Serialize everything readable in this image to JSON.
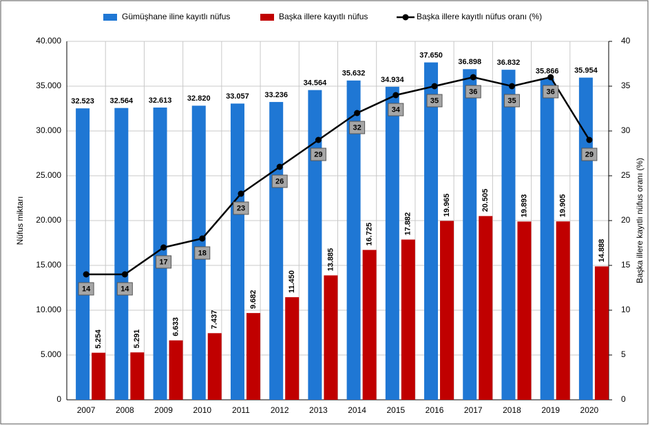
{
  "chart_data": {
    "type": "bar",
    "categories": [
      "2007",
      "2008",
      "2009",
      "2010",
      "2011",
      "2012",
      "2013",
      "2014",
      "2015",
      "2016",
      "2017",
      "2018",
      "2019",
      "2020"
    ],
    "series": [
      {
        "name": "Gümüşhane iline kayıtlı nüfus",
        "color": "#1f77d4",
        "type": "bar",
        "values": [
          32523,
          32564,
          32613,
          32820,
          33057,
          33236,
          34564,
          35632,
          34934,
          37650,
          36898,
          36832,
          35866,
          35954
        ],
        "value_labels": [
          "32.523",
          "32.564",
          "32.613",
          "32.820",
          "33.057",
          "33.236",
          "34.564",
          "35.632",
          "34.934",
          "37.650",
          "36.898",
          "36.832",
          "35.866",
          "35.954"
        ]
      },
      {
        "name": "Başka illere kayıtlı nüfus",
        "color": "#c00000",
        "type": "bar",
        "values": [
          5254,
          5291,
          6633,
          7437,
          9682,
          11450,
          13885,
          16725,
          17882,
          19965,
          20505,
          19893,
          19905,
          14888
        ],
        "value_labels": [
          "5.254",
          "5.291",
          "6.633",
          "7.437",
          "9.682",
          "11.450",
          "13.885",
          "16.725",
          "17.882",
          "19.965",
          "20.505",
          "19.893",
          "19.905",
          "14.888"
        ]
      },
      {
        "name": "Başka illere kayıtlı nüfus oranı (%)",
        "color": "#000000",
        "type": "line",
        "axis": "y2",
        "values": [
          14,
          14,
          17,
          18,
          23,
          26,
          29,
          32,
          34,
          35,
          36,
          35,
          36,
          29
        ]
      }
    ],
    "y_label": "Nüfus miktarı",
    "y2_label": "Başka illere kayıtlı nüfus oranı (%)",
    "ylim": [
      0,
      40000
    ],
    "yticks": [
      0,
      {
        "value": 5000,
        "label": "5.000"
      },
      {
        "value": 10000,
        "label": "10.000"
      },
      {
        "value": 15000,
        "label": "15.000"
      },
      {
        "value": 20000,
        "label": "20.000"
      },
      {
        "value": 25000,
        "label": "25.000"
      },
      {
        "value": 30000,
        "label": "30.000"
      },
      {
        "value": 35000,
        "label": "35.000"
      },
      {
        "value": 40000,
        "label": "40.000"
      }
    ],
    "y2lim": [
      0,
      40
    ],
    "y2ticks": [
      0,
      5,
      10,
      15,
      20,
      25,
      30,
      35,
      40
    ],
    "grid": true,
    "legend": "top"
  }
}
